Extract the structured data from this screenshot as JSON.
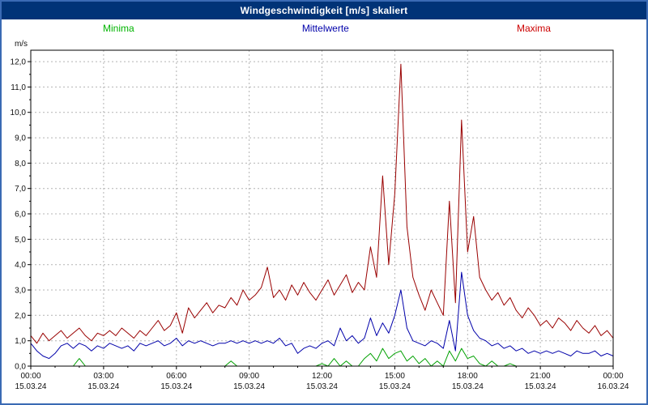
{
  "title": "Windgeschwindigkeit [m/s] skaliert",
  "colors": {
    "frame": "#3a6ab4",
    "titlebar_bg": "#003377",
    "plot_border": "#000000",
    "grid": "#b4b4b4"
  },
  "legend": [
    {
      "label": "Minima",
      "color": "#00b400"
    },
    {
      "label": "Mittelwerte",
      "color": "#0000aa"
    },
    {
      "label": "Maxima",
      "color": "#cc0000"
    }
  ],
  "chart_data": {
    "type": "line",
    "title": "Windgeschwindigkeit [m/s] skaliert",
    "xlabel": "",
    "ylabel": "m/s",
    "ylim": [
      0,
      12
    ],
    "grid": true,
    "legend_position": "top",
    "y_tick_labels": [
      "0,0",
      "1,0",
      "2,0",
      "3,0",
      "4,0",
      "5,0",
      "6,0",
      "7,0",
      "8,0",
      "9,0",
      "10,0",
      "11,0",
      "12,0"
    ],
    "x_tick_hours": [
      0,
      3,
      6,
      9,
      12,
      15,
      18,
      21,
      24
    ],
    "x_tick_labels": [
      "00:00",
      "03:00",
      "06:00",
      "09:00",
      "12:00",
      "15:00",
      "18:00",
      "21:00",
      "00:00"
    ],
    "x_tick_dates": [
      "15.03.24",
      "15.03.24",
      "15.03.24",
      "15.03.24",
      "15.03.24",
      "15.03.24",
      "15.03.24",
      "15.03.24",
      "16.03.24"
    ],
    "sample_interval_minutes": 15,
    "series": [
      {
        "name": "Minima",
        "color": "#00a000",
        "values": [
          0.0,
          0.0,
          0.0,
          0.0,
          0.0,
          0.0,
          0.0,
          0.0,
          0.3,
          0.0,
          0.0,
          0.0,
          0.0,
          0.0,
          0.0,
          0.0,
          0.0,
          0.0,
          0.0,
          0.0,
          0.0,
          0.0,
          0.0,
          0.0,
          0.0,
          0.0,
          0.0,
          0.0,
          0.0,
          0.0,
          0.0,
          0.0,
          0.0,
          0.2,
          0.0,
          0.0,
          0.0,
          0.0,
          0.0,
          0.0,
          0.0,
          0.0,
          0.0,
          0.0,
          0.0,
          0.0,
          0.0,
          0.0,
          0.1,
          0.0,
          0.3,
          0.0,
          0.2,
          0.0,
          0.0,
          0.3,
          0.5,
          0.2,
          0.7,
          0.3,
          0.5,
          0.6,
          0.2,
          0.4,
          0.1,
          0.3,
          0.0,
          0.2,
          0.0,
          0.6,
          0.2,
          0.7,
          0.3,
          0.4,
          0.1,
          0.0,
          0.2,
          0.0,
          0.0,
          0.1,
          0.0,
          0.0,
          0.0,
          0.0,
          0.0,
          0.0,
          0.0,
          0.0,
          0.0,
          0.0,
          0.0,
          0.0,
          0.0,
          0.0,
          0.0,
          0.0,
          0.0
        ]
      },
      {
        "name": "Mittelwerte",
        "color": "#0000aa",
        "values": [
          0.9,
          0.6,
          0.4,
          0.3,
          0.5,
          0.8,
          0.9,
          0.7,
          0.9,
          0.8,
          0.6,
          0.8,
          0.7,
          0.9,
          0.8,
          0.7,
          0.8,
          0.6,
          0.9,
          0.8,
          0.9,
          1.0,
          0.8,
          0.9,
          1.1,
          0.8,
          1.0,
          0.9,
          1.0,
          0.9,
          0.8,
          0.9,
          0.9,
          1.0,
          0.9,
          1.0,
          0.9,
          1.0,
          0.9,
          1.0,
          0.9,
          1.1,
          0.8,
          0.9,
          0.5,
          0.7,
          0.8,
          0.7,
          0.9,
          1.0,
          0.8,
          1.5,
          1.0,
          1.2,
          0.9,
          1.1,
          1.9,
          1.2,
          1.7,
          1.3,
          2.0,
          3.0,
          1.5,
          1.0,
          0.9,
          0.8,
          1.0,
          0.9,
          0.7,
          1.8,
          0.6,
          3.7,
          2.0,
          1.4,
          1.1,
          1.0,
          0.8,
          0.9,
          0.7,
          0.8,
          0.6,
          0.7,
          0.5,
          0.6,
          0.5,
          0.6,
          0.5,
          0.6,
          0.5,
          0.4,
          0.6,
          0.5,
          0.5,
          0.6,
          0.4,
          0.5,
          0.4
        ]
      },
      {
        "name": "Maxima",
        "color": "#990000",
        "values": [
          1.2,
          0.9,
          1.3,
          1.0,
          1.2,
          1.4,
          1.1,
          1.3,
          1.5,
          1.2,
          1.0,
          1.3,
          1.2,
          1.4,
          1.2,
          1.5,
          1.3,
          1.1,
          1.4,
          1.2,
          1.5,
          1.8,
          1.4,
          1.6,
          2.1,
          1.3,
          2.3,
          1.9,
          2.2,
          2.5,
          2.1,
          2.4,
          2.3,
          2.7,
          2.4,
          3.0,
          2.6,
          2.8,
          3.1,
          3.9,
          2.7,
          3.0,
          2.6,
          3.2,
          2.8,
          3.3,
          2.9,
          2.6,
          3.0,
          3.4,
          2.8,
          3.2,
          3.6,
          2.9,
          3.3,
          3.0,
          4.7,
          3.5,
          7.5,
          4.0,
          6.8,
          11.9,
          5.5,
          3.5,
          2.8,
          2.2,
          3.0,
          2.5,
          2.0,
          6.5,
          2.5,
          9.7,
          4.5,
          5.9,
          3.5,
          3.0,
          2.6,
          2.9,
          2.4,
          2.7,
          2.2,
          1.9,
          2.3,
          2.0,
          1.6,
          1.8,
          1.5,
          1.9,
          1.7,
          1.4,
          1.8,
          1.5,
          1.3,
          1.6,
          1.2,
          1.4,
          1.1
        ]
      }
    ]
  }
}
